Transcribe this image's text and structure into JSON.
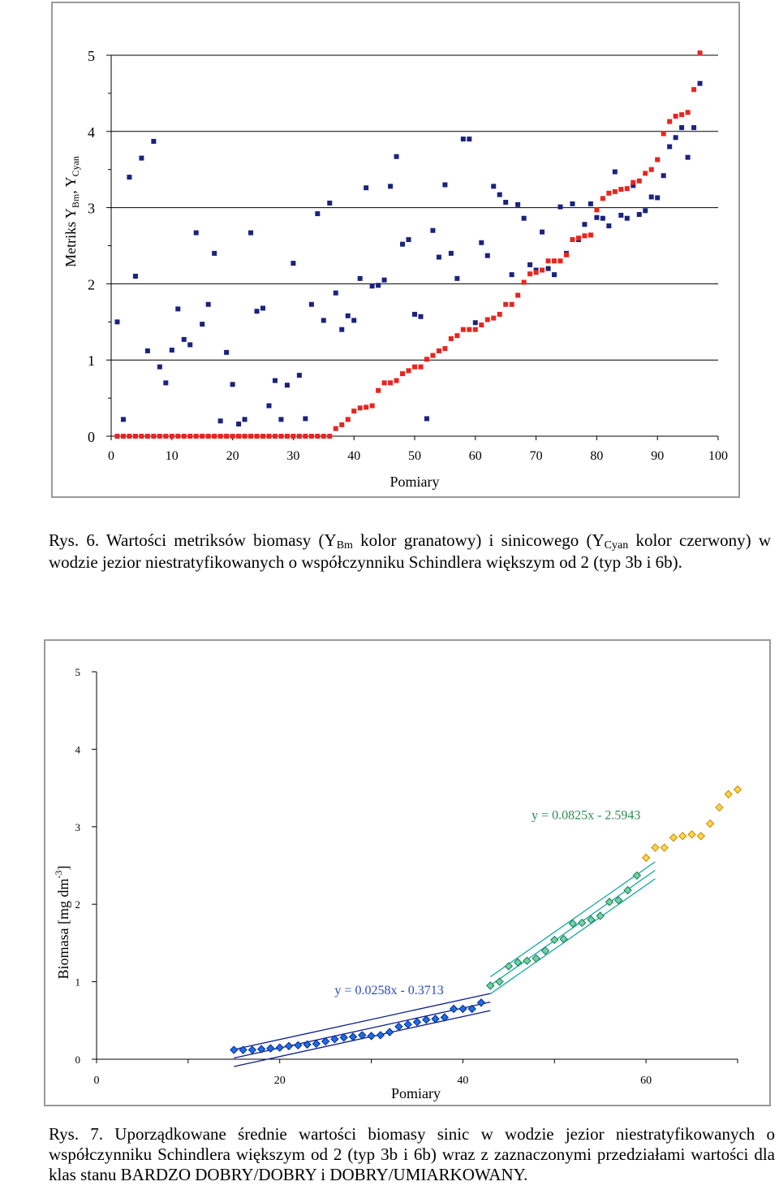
{
  "chart_data": [
    {
      "type": "scatter",
      "xlabel": "Pomiary",
      "ylabel_parts": [
        "Metriks Y",
        "Bm",
        ", Y",
        "Cyan"
      ],
      "xlim": [
        0,
        100
      ],
      "ylim": [
        0,
        5
      ],
      "x_ticks": [
        0,
        10,
        20,
        30,
        40,
        50,
        60,
        70,
        80,
        90,
        100
      ],
      "y_ticks": [
        0,
        1,
        2,
        3,
        4,
        5
      ],
      "grid": "horizontal",
      "series": [
        {
          "color": "#1a237e",
          "points": [
            [
              1,
              1.5
            ],
            [
              2,
              0.22
            ],
            [
              3,
              3.4
            ],
            [
              4,
              2.1
            ],
            [
              5,
              3.65
            ],
            [
              6,
              1.12
            ],
            [
              7,
              3.87
            ],
            [
              8,
              0.91
            ],
            [
              9,
              0.7
            ],
            [
              10,
              1.13
            ],
            [
              11,
              1.67
            ],
            [
              12,
              1.27
            ],
            [
              13,
              1.2
            ],
            [
              14,
              2.67
            ],
            [
              15,
              1.47
            ],
            [
              16,
              1.73
            ],
            [
              17,
              2.4
            ],
            [
              18,
              0.2
            ],
            [
              19,
              1.1
            ],
            [
              20,
              0.68
            ],
            [
              21,
              0.16
            ],
            [
              22,
              0.22
            ],
            [
              23,
              2.67
            ],
            [
              24,
              1.64
            ],
            [
              25,
              1.68
            ],
            [
              26,
              0.4
            ],
            [
              27,
              0.73
            ],
            [
              28,
              0.22
            ],
            [
              29,
              0.67
            ],
            [
              30,
              2.27
            ],
            [
              31,
              0.8
            ],
            [
              32,
              0.23
            ],
            [
              33,
              1.73
            ],
            [
              34,
              2.92
            ],
            [
              35,
              1.52
            ],
            [
              36,
              3.06
            ],
            [
              37,
              1.88
            ],
            [
              38,
              1.4
            ],
            [
              39,
              1.58
            ],
            [
              40,
              1.52
            ],
            [
              41,
              2.07
            ],
            [
              42,
              3.26
            ],
            [
              43,
              1.97
            ],
            [
              44,
              1.98
            ],
            [
              45,
              2.05
            ],
            [
              46,
              3.28
            ],
            [
              47,
              3.67
            ],
            [
              48,
              2.52
            ],
            [
              49,
              2.58
            ],
            [
              50,
              1.6
            ],
            [
              51,
              1.57
            ],
            [
              52,
              0.23
            ],
            [
              53,
              2.7
            ],
            [
              54,
              2.35
            ],
            [
              55,
              3.3
            ],
            [
              56,
              2.4
            ],
            [
              57,
              2.07
            ],
            [
              58,
              3.9
            ],
            [
              59,
              3.9
            ],
            [
              60,
              1.49
            ],
            [
              61,
              2.54
            ],
            [
              62,
              2.37
            ],
            [
              63,
              3.28
            ],
            [
              64,
              3.17
            ],
            [
              65,
              3.07
            ],
            [
              66,
              2.12
            ],
            [
              67,
              3.04
            ],
            [
              68,
              2.86
            ],
            [
              69,
              2.25
            ],
            [
              70,
              2.18
            ],
            [
              71,
              2.68
            ],
            [
              72,
              2.2
            ],
            [
              73,
              2.12
            ],
            [
              74,
              3.01
            ],
            [
              75,
              2.4
            ],
            [
              76,
              3.05
            ],
            [
              77,
              2.58
            ],
            [
              78,
              2.78
            ],
            [
              79,
              3.05
            ],
            [
              80,
              2.87
            ],
            [
              81,
              2.86
            ],
            [
              82,
              2.76
            ],
            [
              83,
              3.47
            ],
            [
              84,
              2.9
            ],
            [
              85,
              2.86
            ],
            [
              86,
              3.29
            ],
            [
              87,
              2.91
            ],
            [
              88,
              2.96
            ],
            [
              89,
              3.14
            ],
            [
              90,
              3.13
            ],
            [
              91,
              3.42
            ],
            [
              92,
              3.8
            ],
            [
              93,
              3.92
            ],
            [
              94,
              4.05
            ],
            [
              95,
              3.66
            ],
            [
              96,
              4.05
            ],
            [
              97,
              4.63
            ]
          ]
        },
        {
          "color": "#e8251f",
          "points": [
            [
              1,
              0
            ],
            [
              2,
              0
            ],
            [
              3,
              0
            ],
            [
              4,
              0
            ],
            [
              5,
              0
            ],
            [
              6,
              0
            ],
            [
              7,
              0
            ],
            [
              8,
              0
            ],
            [
              9,
              0
            ],
            [
              10,
              0
            ],
            [
              11,
              0
            ],
            [
              12,
              0
            ],
            [
              13,
              0
            ],
            [
              14,
              0
            ],
            [
              15,
              0
            ],
            [
              16,
              0
            ],
            [
              17,
              0
            ],
            [
              18,
              0
            ],
            [
              19,
              0
            ],
            [
              20,
              0
            ],
            [
              21,
              0
            ],
            [
              22,
              0
            ],
            [
              23,
              0
            ],
            [
              24,
              0
            ],
            [
              25,
              0
            ],
            [
              26,
              0
            ],
            [
              27,
              0
            ],
            [
              28,
              0
            ],
            [
              29,
              0
            ],
            [
              30,
              0
            ],
            [
              31,
              0
            ],
            [
              32,
              0
            ],
            [
              33,
              0
            ],
            [
              34,
              0
            ],
            [
              35,
              0
            ],
            [
              36,
              0
            ],
            [
              37,
              0.1
            ],
            [
              38,
              0.15
            ],
            [
              39,
              0.22
            ],
            [
              40,
              0.33
            ],
            [
              41,
              0.37
            ],
            [
              42,
              0.38
            ],
            [
              43,
              0.4
            ],
            [
              44,
              0.6
            ],
            [
              45,
              0.7
            ],
            [
              46,
              0.7
            ],
            [
              47,
              0.73
            ],
            [
              48,
              0.82
            ],
            [
              49,
              0.86
            ],
            [
              50,
              0.91
            ],
            [
              51,
              0.91
            ],
            [
              52,
              1.01
            ],
            [
              53,
              1.06
            ],
            [
              54,
              1.12
            ],
            [
              55,
              1.15
            ],
            [
              56,
              1.28
            ],
            [
              57,
              1.32
            ],
            [
              58,
              1.4
            ],
            [
              59,
              1.4
            ],
            [
              60,
              1.4
            ],
            [
              61,
              1.46
            ],
            [
              62,
              1.53
            ],
            [
              63,
              1.55
            ],
            [
              64,
              1.6
            ],
            [
              65,
              1.73
            ],
            [
              66,
              1.73
            ],
            [
              67,
              1.85
            ],
            [
              68,
              2.02
            ],
            [
              69,
              2.13
            ],
            [
              70,
              2.15
            ],
            [
              71,
              2.18
            ],
            [
              72,
              2.3
            ],
            [
              73,
              2.3
            ],
            [
              74,
              2.3
            ],
            [
              75,
              2.38
            ],
            [
              76,
              2.58
            ],
            [
              77,
              2.6
            ],
            [
              78,
              2.63
            ],
            [
              79,
              2.64
            ],
            [
              80,
              2.97
            ],
            [
              81,
              3.12
            ],
            [
              82,
              3.19
            ],
            [
              83,
              3.21
            ],
            [
              84,
              3.24
            ],
            [
              85,
              3.25
            ],
            [
              86,
              3.33
            ],
            [
              87,
              3.35
            ],
            [
              88,
              3.45
            ],
            [
              89,
              3.5
            ],
            [
              90,
              3.63
            ],
            [
              91,
              3.97
            ],
            [
              92,
              4.13
            ],
            [
              93,
              4.2
            ],
            [
              94,
              4.22
            ],
            [
              95,
              4.25
            ],
            [
              96,
              4.55
            ],
            [
              97,
              5.03
            ]
          ]
        }
      ]
    },
    {
      "type": "scatter",
      "xlabel": "Pomiary",
      "ylabel_main": "Biomasa [mg dm",
      "ylabel_sup": "-3",
      "ylabel_end": "]",
      "xlim": [
        0,
        70
      ],
      "ylim": [
        0,
        5
      ],
      "x_ticks": [
        0,
        20,
        40,
        60
      ],
      "y_ticks": [
        0,
        1,
        2,
        3,
        4,
        5
      ],
      "grid": "none",
      "series": [
        {
          "color": "#1e6be6",
          "edge": "#0a2a8a",
          "x": [
            15,
            16,
            17,
            18,
            19,
            20,
            21,
            22,
            23,
            24,
            25,
            26,
            27,
            28,
            29,
            30,
            31,
            32,
            33,
            34,
            35,
            36,
            37,
            38,
            39,
            40,
            41,
            42
          ],
          "y": [
            0.12,
            0.12,
            0.12,
            0.13,
            0.14,
            0.15,
            0.17,
            0.18,
            0.19,
            0.2,
            0.23,
            0.26,
            0.28,
            0.29,
            0.31,
            0.3,
            0.31,
            0.35,
            0.42,
            0.45,
            0.48,
            0.51,
            0.52,
            0.54,
            0.65,
            0.65,
            0.65,
            0.73
          ]
        },
        {
          "color": "#6fd3a0",
          "edge": "#1a7a5a",
          "x": [
            43,
            44,
            45,
            46,
            47,
            48,
            49,
            50,
            51,
            52,
            53,
            54,
            55,
            56,
            57,
            58,
            59
          ],
          "y": [
            0.95,
            1.0,
            1.2,
            1.25,
            1.27,
            1.3,
            1.4,
            1.54,
            1.55,
            1.75,
            1.76,
            1.8,
            1.85,
            2.03,
            2.05,
            2.18,
            2.37
          ]
        },
        {
          "color": "#ffd54f",
          "edge": "#c88a00",
          "x": [
            60,
            61,
            62,
            63,
            64,
            65,
            66,
            67,
            68,
            69,
            70
          ],
          "y": [
            2.6,
            2.73,
            2.73,
            2.86,
            2.88,
            2.9,
            2.88,
            3.04,
            3.25,
            3.42,
            3.48
          ]
        }
      ],
      "trendlines": [
        {
          "equation": "y = 0.0258x - 0.3713",
          "slope": 0.0258,
          "intercept": -0.3713,
          "x_range": [
            15,
            43
          ],
          "color": "#0a1e8a"
        },
        {
          "equation": "y = 0.0825x - 2.5943",
          "slope": 0.0825,
          "intercept": -2.5943,
          "x_range": [
            43,
            61
          ],
          "color": "#17a5a5"
        }
      ],
      "band_offset": 0.11
    }
  ],
  "captions": {
    "fig6_lead": "Rys. 6. Wartości metriksów biomasy (Y",
    "fig6_sub1": "Bm",
    "fig6_mid": " kolor granatowy) i sinicowego (Y",
    "fig6_sub2": "Cyan",
    "fig6_tail": " kolor czerwony) w wodzie jezior niestratyfikowanych o współczynniku Schindlera większym od 2 (typ 3b i 6b).",
    "fig7": "Rys. 7. Uporządkowane średnie wartości biomasy sinic w wodzie jezior niestratyfikowanych o współczynniku Schindlera większym od 2 (typ 3b i 6b) wraz z zaznaczonymi przedziałami wartości dla klas stanu BARDZO DOBRY/DOBRY i DOBRY/UMIARKOWANY."
  }
}
